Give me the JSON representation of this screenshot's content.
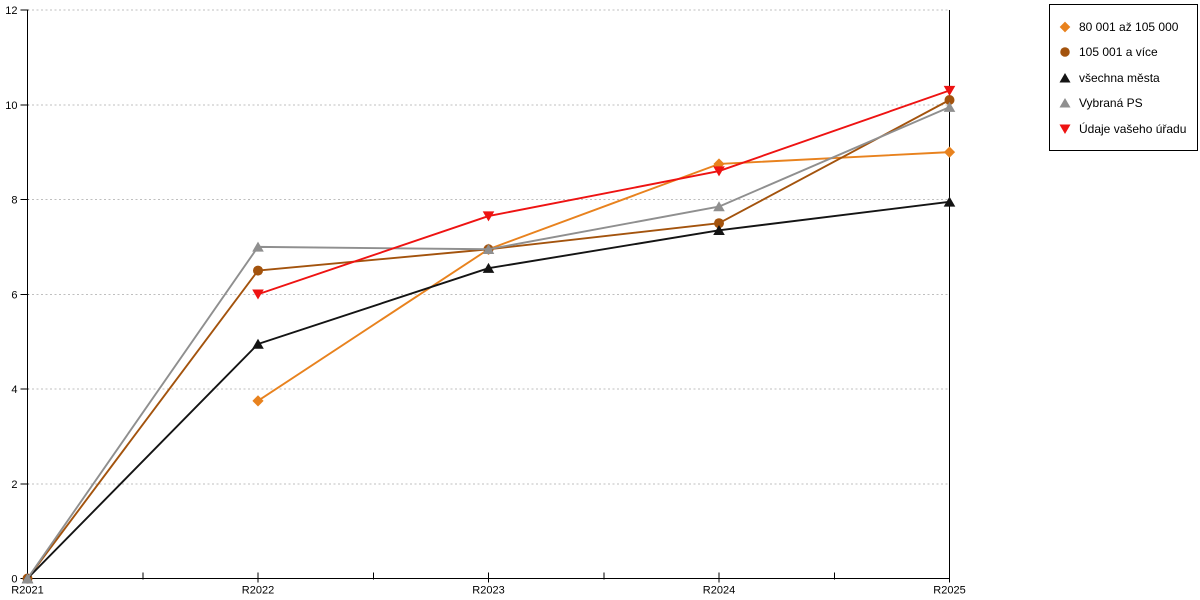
{
  "chart_data": {
    "type": "line",
    "title": "",
    "xlabel": "",
    "ylabel": "",
    "categories": [
      "R2021",
      "R2022",
      "R2023",
      "R2024",
      "R2025"
    ],
    "ylim": [
      0,
      12
    ],
    "yticks": [
      0,
      2,
      4,
      6,
      8,
      10,
      12
    ],
    "grid": "horizontal-dashed",
    "x_minor_ticks_between_categories": true,
    "legend_position": "top-right-outside",
    "series": [
      {
        "name": "80 001 až 105 000",
        "marker": "diamond",
        "color": "#E8821E",
        "values": [
          null,
          3.75,
          6.95,
          8.75,
          9.0
        ]
      },
      {
        "name": "105 001 a více",
        "marker": "circle",
        "color": "#A3530D",
        "values": [
          0,
          6.5,
          6.95,
          7.5,
          10.1
        ]
      },
      {
        "name": "všechna města",
        "marker": "triangle-up",
        "color": "#141414",
        "values": [
          0,
          4.95,
          6.55,
          7.35,
          7.95
        ]
      },
      {
        "name": "Vybraná PS",
        "marker": "triangle-up",
        "color": "#8F8F8F",
        "values": [
          0,
          7.0,
          6.95,
          7.85,
          9.95
        ]
      },
      {
        "name": "Údaje vašeho úřadu",
        "marker": "triangle-down",
        "color": "#EE1312",
        "values": [
          null,
          6.0,
          7.65,
          8.6,
          10.3
        ]
      }
    ],
    "colors": {
      "axis": "#000000",
      "grid": "#BFBFBF",
      "background": "#FFFFFF",
      "text": "#000000"
    }
  }
}
